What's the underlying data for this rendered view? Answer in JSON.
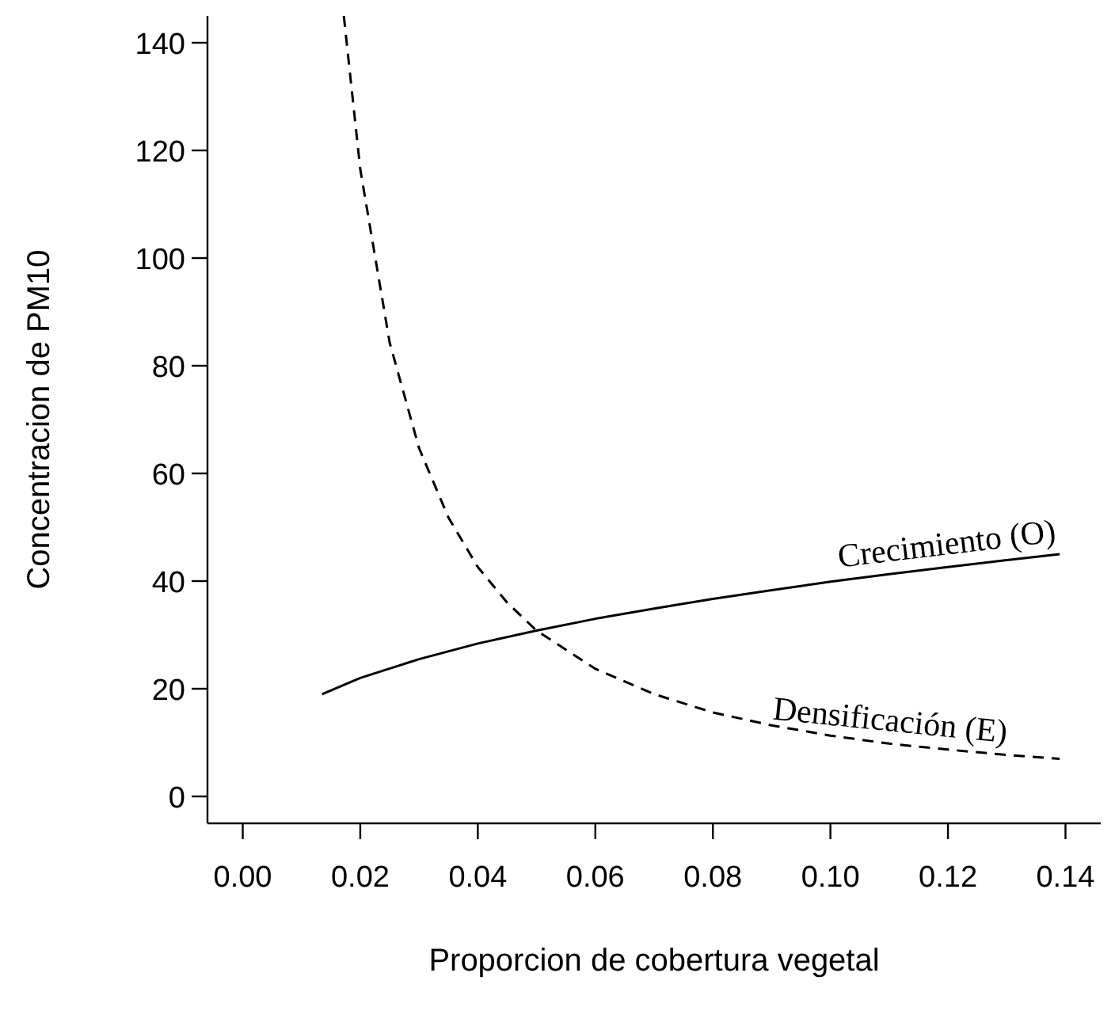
{
  "chart_data": {
    "type": "line",
    "xlabel": "Proporcion de cobertura vegetal",
    "ylabel": "Concentracion de PM10",
    "xlim": [
      -0.006,
      0.146
    ],
    "xticks": [
      {
        "value": 0,
        "label": "0.00"
      },
      {
        "value": 0.02,
        "label": "0.02"
      },
      {
        "value": 0.04,
        "label": "0.04"
      },
      {
        "value": 0.06,
        "label": "0.06"
      },
      {
        "value": 0.08,
        "label": "0.08"
      },
      {
        "value": 0.1,
        "label": "0.10"
      },
      {
        "value": 0.12,
        "label": "0.12"
      },
      {
        "value": 0.14,
        "label": "0.14"
      }
    ],
    "ylim": [
      -5,
      145
    ],
    "yticks": [
      0,
      20,
      40,
      60,
      80,
      100,
      120,
      140
    ],
    "grid": false,
    "marker": "none",
    "series": [
      {
        "name": "Crecimiento (O)",
        "color": "#000000",
        "line_style": "solid",
        "x": [
          0.0135,
          0.02,
          0.03,
          0.04,
          0.05,
          0.06,
          0.07,
          0.08,
          0.09,
          0.1,
          0.11,
          0.12,
          0.13,
          0.139
        ],
        "values": [
          19,
          22,
          25.5,
          28.4,
          30.8,
          33,
          34.9,
          36.7,
          38.3,
          39.9,
          41.3,
          42.6,
          43.9,
          45
        ]
      },
      {
        "name": "Densificación (E)",
        "color": "#000000",
        "line_style": "dashed",
        "x": [
          0.0172,
          0.02,
          0.025,
          0.03,
          0.035,
          0.04,
          0.045,
          0.05,
          0.06,
          0.07,
          0.08,
          0.09,
          0.1,
          0.11,
          0.12,
          0.13,
          0.139
        ],
        "values": [
          145,
          116.5,
          84.3,
          64.7,
          51.8,
          42.6,
          36,
          30.8,
          23.7,
          19,
          15.6,
          13.2,
          11.3,
          9.8,
          8.7,
          7.7,
          7
        ]
      }
    ]
  }
}
